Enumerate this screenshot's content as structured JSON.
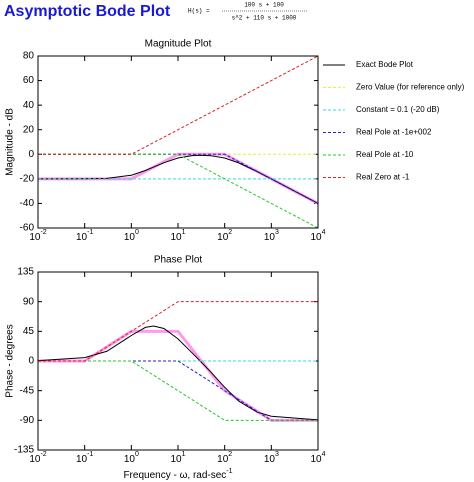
{
  "header": {
    "title": "Asymptotic Bode Plot",
    "formula_lhs": "H(s) =",
    "numerator": "100 s + 100",
    "denominator": "s^2 + 110 s + 1000"
  },
  "chart_data": [
    {
      "type": "line",
      "title": "Magnitude Plot",
      "ylabel": "Magnitude - dB",
      "log_x": true,
      "grid": false,
      "xlim": [
        0.01,
        10000
      ],
      "ylim": [
        -60,
        80
      ],
      "xticks": [
        {
          "value": 0.01,
          "label": "10",
          "exponent": "-2"
        },
        {
          "value": 0.1,
          "label": "10",
          "exponent": "-1"
        },
        {
          "value": 1,
          "label": "10",
          "exponent": "0"
        },
        {
          "value": 10,
          "label": "10",
          "exponent": "1"
        },
        {
          "value": 100,
          "label": "10",
          "exponent": "2"
        },
        {
          "value": 1000,
          "label": "10",
          "exponent": "3"
        },
        {
          "value": 10000,
          "label": "10",
          "exponent": "4"
        }
      ],
      "yticks": [
        -60,
        -40,
        -20,
        0,
        20,
        40,
        60,
        80
      ],
      "series": [
        {
          "color": "#ff99ee",
          "width": 3,
          "dash": false,
          "x": [
            0.01,
            1,
            10,
            100,
            10000
          ],
          "values": [
            -20,
            -20,
            0,
            0,
            -40
          ]
        },
        {
          "name": "Exact Bode Plot",
          "color": "#000000",
          "width": 1,
          "dash": false,
          "x": [
            0.01,
            0.1,
            0.3,
            1,
            2,
            3,
            5,
            10,
            20,
            30,
            50,
            100,
            200,
            500,
            1000,
            10000
          ],
          "values": [
            -20,
            -19.96,
            -19.63,
            -17.03,
            -13.18,
            -10.37,
            -6.83,
            -3.01,
            -1.13,
            -0.82,
            -1.14,
            -3.05,
            -7.0,
            -14.15,
            -20.04,
            -40
          ]
        },
        {
          "name": "Zero Value (for reference only)",
          "color": "#eeee33",
          "width": 1,
          "dash": true,
          "x": [
            0.01,
            10000
          ],
          "values": [
            0,
            0
          ]
        },
        {
          "name": "Constant = 0.1 (-20 dB)",
          "color": "#33dddd",
          "width": 1,
          "dash": true,
          "x": [
            0.01,
            10000
          ],
          "values": [
            -20,
            -20
          ]
        },
        {
          "name": "Real Pole at -1e+002",
          "color": "#2222cc",
          "width": 1,
          "dash": true,
          "x": [
            0.01,
            100,
            10000
          ],
          "values": [
            0,
            0,
            -40
          ]
        },
        {
          "name": "Real Pole at -10",
          "color": "#22cc22",
          "width": 1,
          "dash": true,
          "x": [
            0.01,
            10,
            10000
          ],
          "values": [
            0,
            0,
            -60
          ]
        },
        {
          "name": "Real Zero at -1",
          "color": "#dd2222",
          "width": 1,
          "dash": true,
          "x": [
            0.01,
            1,
            10000
          ],
          "values": [
            0,
            0,
            80
          ]
        }
      ]
    },
    {
      "type": "line",
      "title": "Phase Plot",
      "ylabel": "Phase - degrees",
      "xlabel": "Frequency - ω, rad-sec",
      "xlabel_exponent": "-1",
      "log_x": true,
      "grid": false,
      "xlim": [
        0.01,
        10000
      ],
      "ylim": [
        -135,
        135
      ],
      "xticks": [
        {
          "value": 0.01,
          "label": "10",
          "exponent": "-2"
        },
        {
          "value": 0.1,
          "label": "10",
          "exponent": "-1"
        },
        {
          "value": 1,
          "label": "10",
          "exponent": "0"
        },
        {
          "value": 10,
          "label": "10",
          "exponent": "1"
        },
        {
          "value": 100,
          "label": "10",
          "exponent": "2"
        },
        {
          "value": 1000,
          "label": "10",
          "exponent": "3"
        },
        {
          "value": 10000,
          "label": "10",
          "exponent": "4"
        }
      ],
      "yticks": [
        -135,
        -90,
        -45,
        0,
        45,
        90,
        135
      ],
      "series": [
        {
          "color": "#ff99ee",
          "width": 3,
          "dash": false,
          "x": [
            0.01,
            0.1,
            1,
            10,
            100,
            1000,
            10000
          ],
          "values": [
            0,
            0,
            45,
            45,
            -45,
            -90,
            -90
          ]
        },
        {
          "color": "#000000",
          "width": 1,
          "dash": false,
          "x": [
            0.01,
            0.1,
            0.3,
            1,
            2,
            3,
            5,
            10,
            20,
            30,
            50,
            100,
            200,
            500,
            1000,
            10000
          ],
          "values": [
            0.51,
            5.08,
            14.8,
            38.7,
            50.97,
            53.15,
            49.26,
            33.58,
            12.4,
            -0.18,
            -16.41,
            -39.86,
            -60.86,
            -77.65,
            -83.78,
            -89.38
          ]
        },
        {
          "color": "#eeee33",
          "width": 1,
          "dash": true,
          "x": [
            0.01,
            10000
          ],
          "values": [
            0,
            0
          ]
        },
        {
          "color": "#33dddd",
          "width": 1,
          "dash": true,
          "x": [
            0.01,
            10000
          ],
          "values": [
            0,
            0
          ]
        },
        {
          "color": "#2222cc",
          "width": 1,
          "dash": true,
          "x": [
            0.01,
            10,
            1000,
            10000
          ],
          "values": [
            0,
            0,
            -90,
            -90
          ]
        },
        {
          "color": "#22cc22",
          "width": 1,
          "dash": true,
          "x": [
            0.01,
            1,
            100,
            10000
          ],
          "values": [
            0,
            0,
            -90,
            -90
          ]
        },
        {
          "color": "#dd2222",
          "width": 1,
          "dash": true,
          "x": [
            0.01,
            0.1,
            10,
            10000
          ],
          "values": [
            0,
            0,
            90,
            90
          ]
        }
      ]
    }
  ]
}
